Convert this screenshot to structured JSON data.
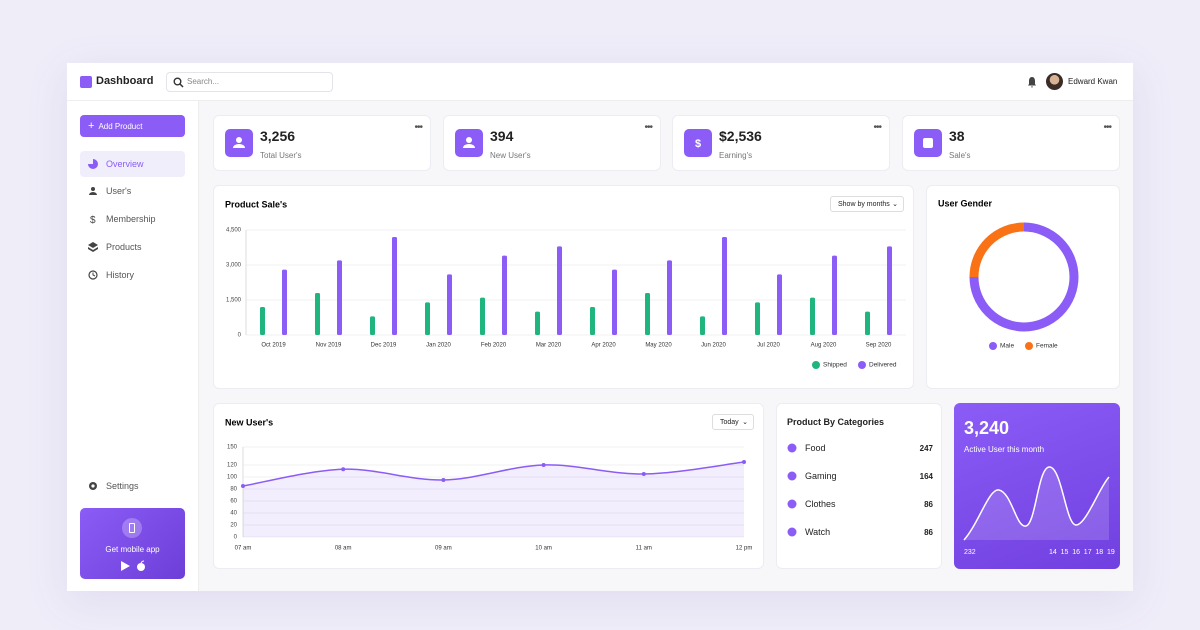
{
  "header": {
    "brand": "Dashboard",
    "search_placeholder": "Search...",
    "user_name": "Edward Kwan"
  },
  "sidebar": {
    "add_button": "Add Product",
    "nav": [
      "Overview",
      "User's",
      "Membership",
      "Products",
      "History"
    ],
    "settings": "Settings",
    "promo": "Get mobile app"
  },
  "stats": [
    {
      "value": "3,256",
      "label": "Total User's"
    },
    {
      "value": "394",
      "label": "New User's"
    },
    {
      "value": "$2,536",
      "label": "Earning's"
    },
    {
      "value": "38",
      "label": "Sale's"
    }
  ],
  "sales_chart": {
    "type": "bar",
    "title": "Product Sale's",
    "filter": "Show by months",
    "categories": [
      "Oct 2019",
      "Nov 2019",
      "Dec 2019",
      "Jan 2020",
      "Feb 2020",
      "Mar 2020",
      "Apr 2020",
      "May 2020",
      "Jun 2020",
      "Jul 2020",
      "Aug 2020",
      "Sep 2020"
    ],
    "series": [
      {
        "name": "Shipped",
        "color": "#1fb57f",
        "values": [
          1200,
          1800,
          800,
          1400,
          1600,
          1000,
          1200,
          1800,
          800,
          1400,
          1600,
          1000
        ]
      },
      {
        "name": "Delivered",
        "color": "#8b5cf6",
        "values": [
          2800,
          3200,
          4200,
          2600,
          3400,
          3800,
          2800,
          3200,
          4200,
          2600,
          3400,
          3800
        ]
      }
    ],
    "ylim": [
      0,
      4500
    ],
    "yticks": [
      0,
      {
        "value": 1500,
        "label": "1,500"
      },
      {
        "value": 3000,
        "label": "3,000"
      },
      {
        "value": 4500,
        "label": "4,500"
      }
    ],
    "grid": true
  },
  "gender_chart": {
    "type": "pie",
    "title": "User Gender",
    "categories": [
      "Male",
      "Female"
    ],
    "values": [
      75,
      25
    ],
    "colors": [
      "#8b5cf6",
      "#f97316"
    ]
  },
  "users_chart": {
    "type": "line",
    "title": "New User's",
    "filter": "Today",
    "categories": [
      "07 am",
      "08 am",
      "09 am",
      "10 am",
      "11 am",
      "12 pm"
    ],
    "values": [
      85,
      113,
      95,
      120,
      105,
      125
    ],
    "color": "#8b5cf6",
    "ylim": [
      0,
      150
    ],
    "yticks": [
      0,
      20,
      40,
      60,
      80,
      100,
      120,
      150
    ],
    "grid": true
  },
  "categories_card": {
    "title": "Product By Categories",
    "items": [
      {
        "name": "Food",
        "value": 247
      },
      {
        "name": "Gaming",
        "value": 164
      },
      {
        "name": "Clothes",
        "value": 86
      },
      {
        "name": "Watch",
        "value": 86
      }
    ]
  },
  "active_card": {
    "value": "3,240",
    "label": "Active User this month",
    "start": "232",
    "days": [
      "14",
      "15",
      "16",
      "17",
      "18",
      "19"
    ]
  }
}
